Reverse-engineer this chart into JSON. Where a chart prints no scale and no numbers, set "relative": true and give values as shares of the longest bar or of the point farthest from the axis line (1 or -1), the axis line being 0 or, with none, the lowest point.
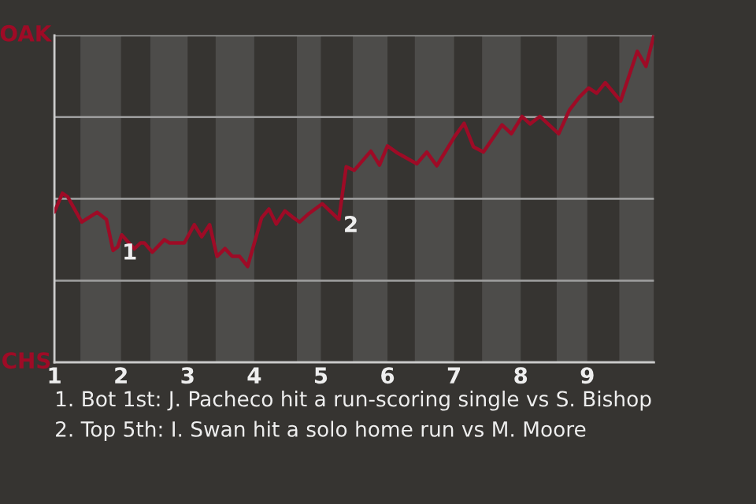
{
  "chart_data": {
    "type": "line",
    "relative": true,
    "x": [
      1,
      1.12,
      1.2,
      1.41,
      1.64,
      1.78,
      1.88,
      1.95,
      2.01,
      2.2,
      2.29,
      2.35,
      2.47,
      2.65,
      2.73,
      2.95,
      3.1,
      3.21,
      3.33,
      3.44,
      3.56,
      3.67,
      3.78,
      3.9,
      4.11,
      4.22,
      4.33,
      4.46,
      4.57,
      4.68,
      4.82,
      5.02,
      5.27,
      5.38,
      5.5,
      5.75,
      5.88,
      6,
      6.15,
      6.44,
      6.59,
      6.74,
      7.01,
      7.15,
      7.29,
      7.44,
      7.72,
      7.86,
      8.02,
      8.14,
      8.29,
      8.57,
      8.73,
      8.88,
      9.02,
      9.14,
      9.27,
      9.5,
      9.75,
      9.88,
      10
    ],
    "series": [
      {
        "color": "#9e0b26",
        "values": [
          0.46,
          0.517,
          0.506,
          0.429,
          0.459,
          0.437,
          0.342,
          0.353,
          0.39,
          0.347,
          0.365,
          0.365,
          0.337,
          0.375,
          0.365,
          0.365,
          0.421,
          0.384,
          0.421,
          0.324,
          0.348,
          0.324,
          0.324,
          0.293,
          0.442,
          0.469,
          0.423,
          0.463,
          0.445,
          0.429,
          0.455,
          0.485,
          0.437,
          0.598,
          0.587,
          0.646,
          0.603,
          0.662,
          0.64,
          0.607,
          0.643,
          0.601,
          0.691,
          0.731,
          0.659,
          0.643,
          0.726,
          0.699,
          0.752,
          0.729,
          0.752,
          0.699,
          0.771,
          0.811,
          0.839,
          0.823,
          0.855,
          0.799,
          0.951,
          0.905,
          1
        ]
      }
    ],
    "xlim": [
      1,
      10
    ],
    "xticks": [
      1,
      2,
      3,
      4,
      5,
      6,
      7,
      8,
      9
    ],
    "grid": "y",
    "bands": [
      {
        "axis": "x",
        "from": 1.39,
        "to": 2,
        "color": "#4d4c4a"
      },
      {
        "axis": "x",
        "from": 2.44,
        "to": 3,
        "color": "#4d4c4a"
      },
      {
        "axis": "x",
        "from": 3.42,
        "to": 4,
        "color": "#4d4c4a"
      },
      {
        "axis": "x",
        "from": 4.64,
        "to": 5,
        "color": "#4d4c4a"
      },
      {
        "axis": "x",
        "from": 5.48,
        "to": 6,
        "color": "#4d4c4a"
      },
      {
        "axis": "x",
        "from": 6.41,
        "to": 7,
        "color": "#4d4c4a"
      },
      {
        "axis": "x",
        "from": 7.42,
        "to": 8,
        "color": "#4d4c4a"
      },
      {
        "axis": "x",
        "from": 8.54,
        "to": 9,
        "color": "#4d4c4a"
      },
      {
        "axis": "x",
        "from": 9.48,
        "to": 10,
        "color": "#4d4c4a"
      }
    ],
    "annotations": [
      {
        "text": "1",
        "x": 1.95,
        "y": 0.353
      },
      {
        "text": "2",
        "x": 5.27,
        "y": 0.437
      },
      "OAK",
      "CHS",
      "1. Bot 1st: J. Pacheco hit a run-scoring single vs S. Bishop",
      "2. Top 5th: I. Swan hit a solo home run vs M. Moore"
    ]
  }
}
